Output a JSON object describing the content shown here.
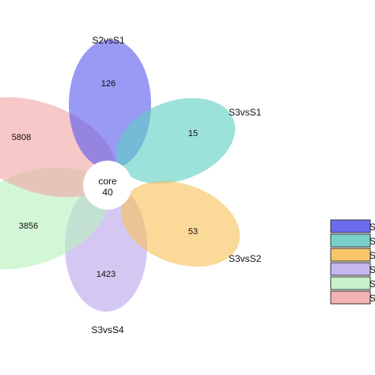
{
  "petals": [
    {
      "set": "S2vsS1",
      "count": "126",
      "color": "#5b5bf0"
    },
    {
      "set": "S3vsS1",
      "count": "15",
      "color": "#5fcfc3"
    },
    {
      "set": "S3vsS2",
      "count": "53",
      "color": "#f7c15a"
    },
    {
      "set": "S3vsS4",
      "count": "1423",
      "color": "#b9a7ec"
    },
    {
      "set": "",
      "count": "3856",
      "color": "#b8f0bf"
    },
    {
      "set": "",
      "count": "5808",
      "color": "#f2a7a7"
    }
  ],
  "core": {
    "label": "core",
    "value": "40"
  },
  "legend": {
    "items": [
      {
        "text": "S",
        "color": "#6b6bf0"
      },
      {
        "text": "S",
        "color": "#79d2c9"
      },
      {
        "text": "S",
        "color": "#f7c66a"
      },
      {
        "text": "S",
        "color": "#c6b6ef"
      },
      {
        "text": "S",
        "color": "#c7f2cc"
      },
      {
        "text": "S",
        "color": "#f2b3b3"
      }
    ]
  }
}
